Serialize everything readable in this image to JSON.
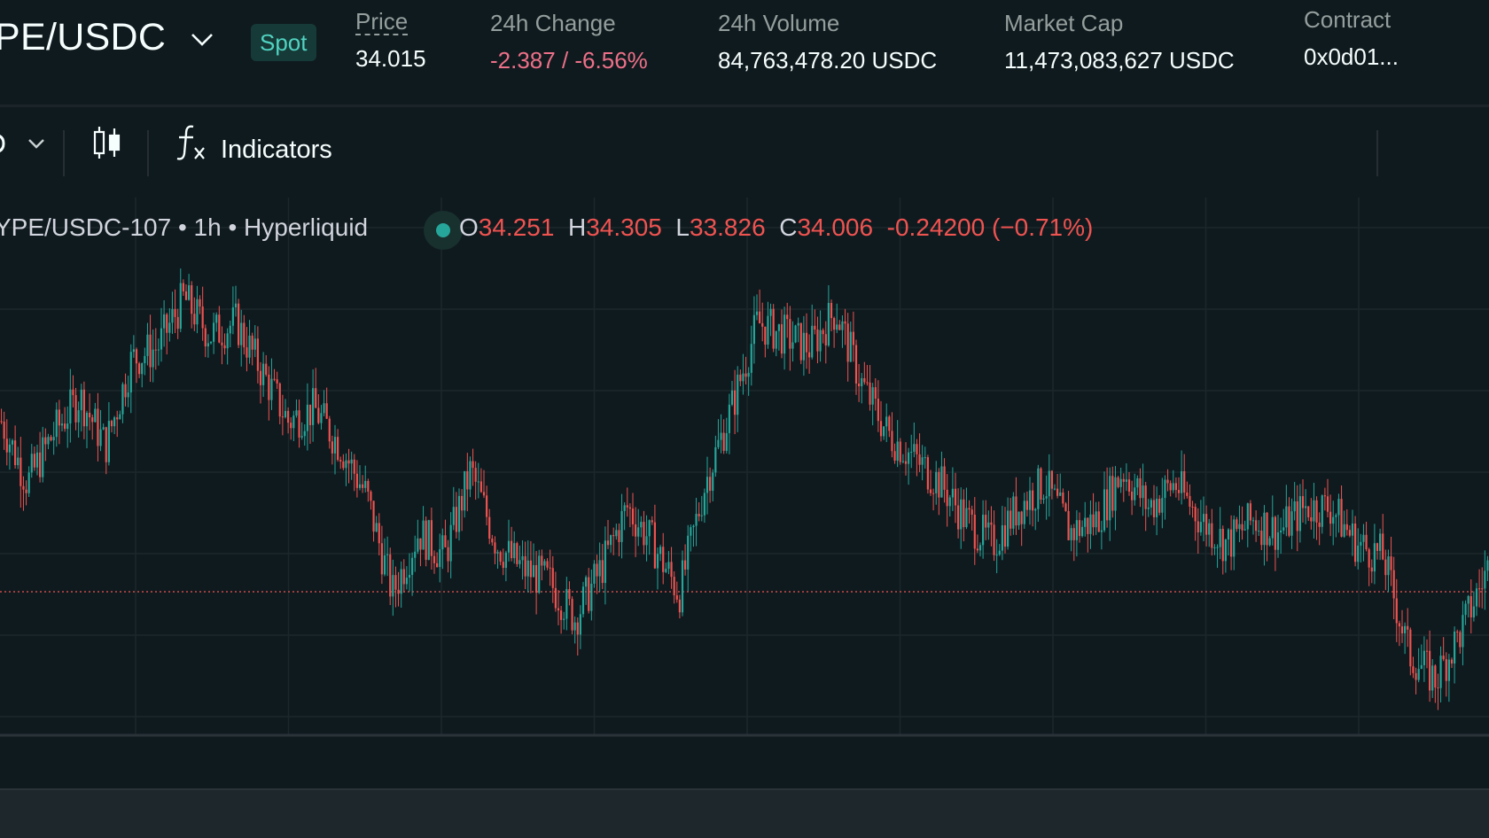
{
  "header": {
    "pair_label": "PE/USDC",
    "market_type_badge": "Spot",
    "stats": [
      {
        "label": "Price",
        "value": "34.015"
      },
      {
        "label": "24h Change",
        "value": "-2.387 / -6.56%"
      },
      {
        "label": "24h Volume",
        "value": "84,763,478.20 USDC"
      },
      {
        "label": "Market Cap",
        "value": "11,473,083,627 USDC"
      },
      {
        "label": "Contract",
        "value": "0x0d01..."
      }
    ]
  },
  "toolbar": {
    "indicators_label": "Indicators",
    "icons": [
      "interval-dropdown-chevron-icon",
      "candlestick-chart-type-icon",
      "fx-indicators-icon"
    ]
  },
  "chart_legend": {
    "symbol": "YPE/USDC-107 • 1h • Hyperliquid",
    "open_key": "O",
    "open": "34.251",
    "high_key": "H",
    "high": "34.305",
    "low_key": "L",
    "low": "33.826",
    "close_key": "C",
    "close": "34.006",
    "change": "-0.24200 (−0.71%)"
  },
  "colors": {
    "up": "#26a69a",
    "down": "#ef5350",
    "spot_badge_text": "#50d2c1",
    "negative_text": "#ed7088",
    "background": "#0f1a1f"
  },
  "chart_data": {
    "type": "candlestick",
    "interval": "1h",
    "grid": true,
    "trend_points": [
      35.4,
      34.9,
      35.3,
      35.6,
      35.2,
      35.9,
      36.0,
      36.4,
      36.1,
      36.2,
      35.8,
      35.4,
      35.5,
      35.2,
      34.8,
      34.0,
      34.5,
      34.3,
      35.0,
      34.4,
      34.2,
      34.1,
      33.8,
      34.2,
      34.7,
      34.4,
      34.0,
      34.9,
      35.5,
      36.2,
      36.1,
      36.0,
      36.3,
      35.7,
      35.3,
      35.1,
      34.9,
      34.6,
      34.4,
      34.7,
      34.9,
      34.5,
      34.6,
      35.0,
      34.7,
      34.9,
      34.6,
      34.4,
      34.6,
      34.5,
      34.7,
      34.7,
      34.4,
      34.3,
      33.5,
      33.3,
      33.7,
      34.2
    ],
    "current_price_line": 34.015
  }
}
